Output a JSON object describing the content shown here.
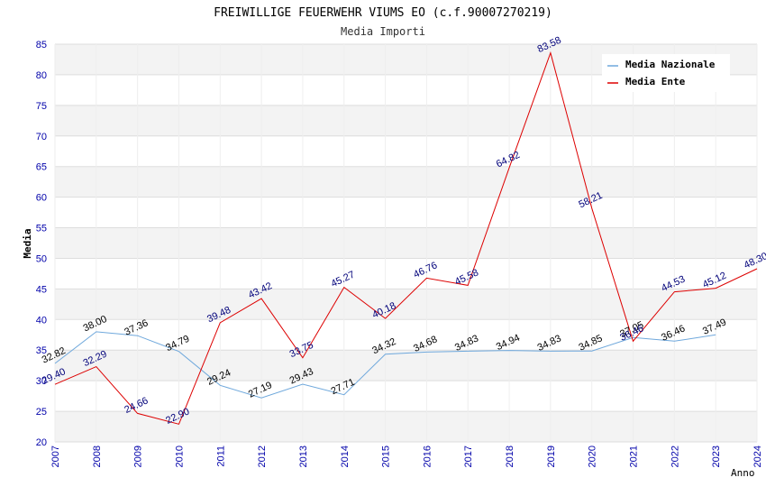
{
  "chart_data": {
    "type": "line",
    "title": "FREIWILLIGE FEUERWEHR VIUMS EO (c.f.90007270219)",
    "subtitle": "Media Importi",
    "ylabel": "Media",
    "xlabel": "Anno",
    "ylim": [
      20,
      85
    ],
    "yticks": [
      "20",
      "25",
      "30",
      "35",
      "40",
      "45",
      "50",
      "55",
      "60",
      "65",
      "70",
      "75",
      "80",
      "85"
    ],
    "x": [
      "2007",
      "2008",
      "2009",
      "2010",
      "2011",
      "2012",
      "2013",
      "2014",
      "2015",
      "2016",
      "2017",
      "2018",
      "2019",
      "2020",
      "2021",
      "2022",
      "2023",
      "2024"
    ],
    "grid": "horizontal bands",
    "legend_position": "top-right",
    "series": [
      {
        "name": "Media Nazionale",
        "color": "#6fa8dc",
        "values": [
          32.82,
          38.0,
          37.36,
          34.79,
          29.24,
          27.19,
          29.43,
          27.71,
          34.32,
          34.68,
          34.83,
          34.94,
          34.83,
          34.85,
          37.05,
          36.46,
          37.49,
          null
        ],
        "labels": [
          "32.82",
          "38.00",
          "37.36",
          "34.79",
          "29.24",
          "27.19",
          "29.43",
          "27.71",
          "34.32",
          "34.68",
          "34.83",
          "34.94",
          "34.83",
          "34.85",
          "37.05",
          "36.46",
          "37.49",
          ""
        ]
      },
      {
        "name": "Media Ente",
        "color": "#dd0000",
        "values": [
          29.4,
          32.29,
          24.66,
          22.9,
          39.48,
          43.42,
          33.75,
          45.27,
          40.18,
          46.76,
          45.58,
          64.82,
          83.58,
          58.21,
          36.46,
          44.53,
          45.12,
          48.3
        ],
        "labels": [
          "29.40",
          "32.29",
          "24.66",
          "22.90",
          "39.48",
          "43.42",
          "33.75",
          "45.27",
          "40.18",
          "46.76",
          "45.58",
          "64.82",
          "83.58",
          "58.21",
          "36.46",
          "44.53",
          "45.12",
          "48.30"
        ]
      }
    ]
  }
}
